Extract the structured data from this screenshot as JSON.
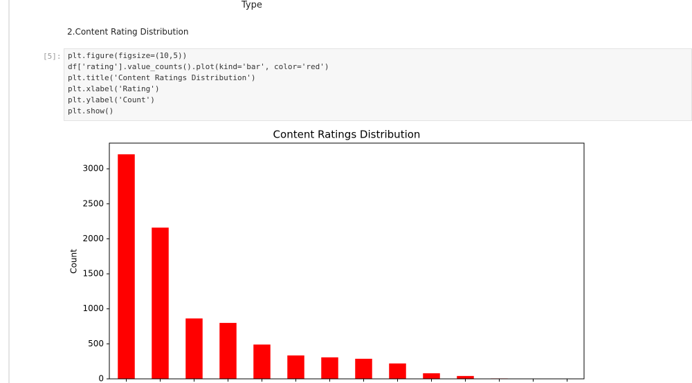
{
  "notebook": {
    "previous_axis_label": "Type",
    "markdown": "2.Content Rating Distribution",
    "prompt": "[5]:",
    "code": [
      "plt.figure(figsize=(10,5))",
      "df['rating'].value_counts().plot(kind='bar', color='red')",
      "plt.title('Content Ratings Distribution')",
      "plt.xlabel('Rating')",
      "plt.ylabel('Count')",
      "plt.show()"
    ]
  },
  "chart_data": {
    "type": "bar",
    "title": "Content Ratings Distribution",
    "y_label": "Count",
    "categories": [
      null,
      null,
      null,
      null,
      null,
      null,
      null,
      null,
      null,
      null,
      null,
      null,
      null,
      null
    ],
    "values": [
      3207,
      2160,
      863,
      799,
      490,
      334,
      307,
      287,
      220,
      80,
      41,
      6,
      3,
      3
    ],
    "color": "red",
    "ylim": [
      0,
      3367
    ],
    "yticks": [
      0,
      500,
      1000,
      1500,
      2000,
      2500,
      3000
    ],
    "grid": false
  }
}
